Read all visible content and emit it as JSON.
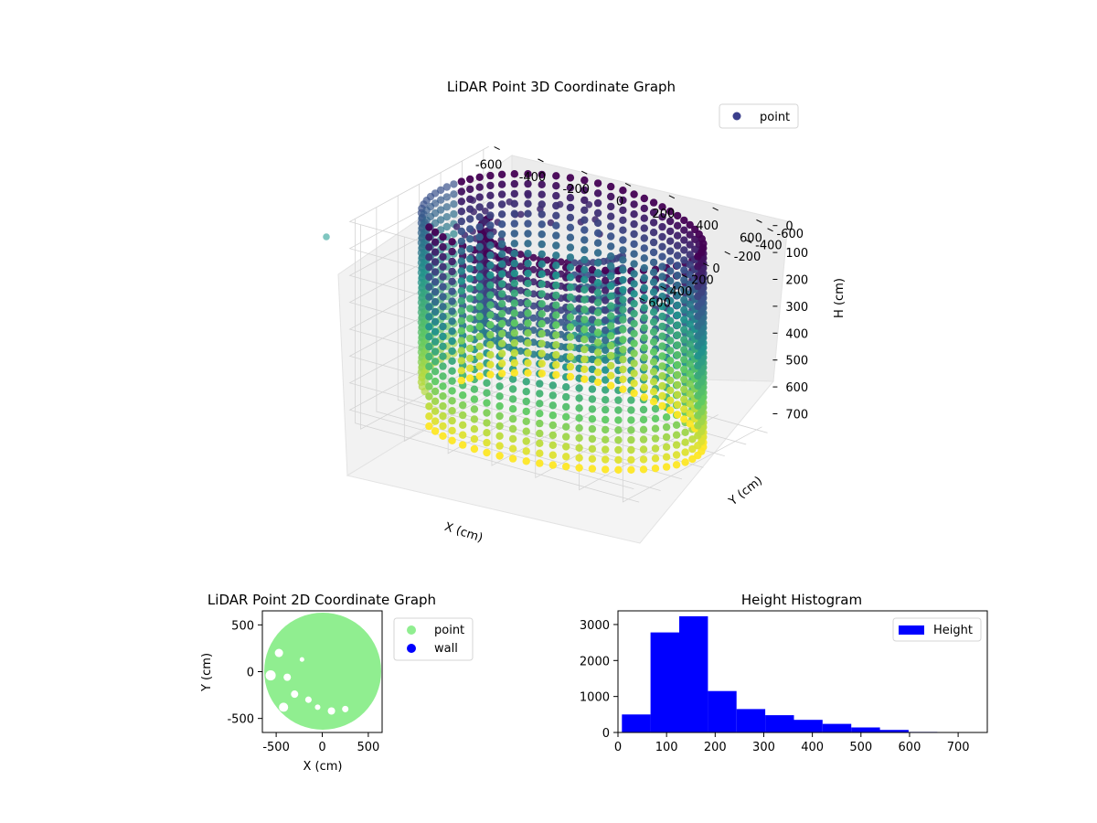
{
  "chart_data": [
    {
      "type": "scatter",
      "projection": "3d",
      "title": "LiDAR Point 3D Coordinate Graph",
      "xlabel": "X (cm)",
      "ylabel": "Y (cm)",
      "zlabel": "H (cm)",
      "xlim": [
        -650,
        650
      ],
      "ylim": [
        -650,
        650
      ],
      "zlim": [
        0,
        760
      ],
      "z_inverted": true,
      "xticks": [
        -600,
        -400,
        -200,
        0,
        200,
        400,
        600
      ],
      "yticks": [
        -600,
        -400,
        -200,
        0,
        200,
        400,
        600
      ],
      "zticks": [
        0,
        100,
        200,
        300,
        400,
        500,
        600,
        700
      ],
      "grid": true,
      "legend": {
        "location": "upper-right",
        "entries": [
          "point"
        ]
      },
      "colormap": "viridis",
      "series": [
        {
          "name": "point",
          "color": "#3b3f8c",
          "outer_wall": {
            "shape": "ring",
            "radius_cm": 600,
            "h_min": 0,
            "h_max": 740
          },
          "inner_obstacle": {
            "shape": "curved-band",
            "h_min": 0,
            "h_max": 400
          },
          "outliers": [
            {
              "x": -650,
              "y": 520,
              "h": 20
            }
          ]
        }
      ]
    },
    {
      "type": "scatter",
      "title": "LiDAR Point 2D Coordinate Graph",
      "xlabel": "X (cm)",
      "ylabel": "Y (cm)",
      "xlim": [
        -650,
        650
      ],
      "ylim": [
        -650,
        650
      ],
      "xticks": [
        -500,
        0,
        500
      ],
      "yticks": [
        -500,
        0,
        500
      ],
      "legend": {
        "location": "outside-right",
        "entries": [
          "point",
          "wall"
        ]
      },
      "series": [
        {
          "name": "point",
          "color": "#90ee90",
          "region": {
            "center": [
              0,
              0
            ],
            "radius": 620
          }
        },
        {
          "name": "wall",
          "color": "#0000ff",
          "points": []
        }
      ]
    },
    {
      "type": "bar",
      "subtype": "histogram",
      "title": "Height Histogram",
      "xlabel": "",
      "ylabel": "",
      "xlim": [
        0,
        760
      ],
      "ylim": [
        0,
        3380
      ],
      "xticks": [
        0,
        100,
        200,
        300,
        400,
        500,
        600,
        700
      ],
      "yticks": [
        0,
        1000,
        2000,
        3000
      ],
      "legend": {
        "location": "upper-right",
        "entries": [
          "Height"
        ]
      },
      "series": [
        {
          "name": "Height",
          "color": "#0000ff",
          "bin_edges": [
            8,
            67,
            126,
            185,
            244,
            303,
            362,
            421,
            480,
            539,
            598,
            657,
            716
          ],
          "counts": [
            500,
            2780,
            3230,
            1150,
            650,
            480,
            350,
            240,
            140,
            70,
            15,
            5
          ]
        }
      ]
    }
  ]
}
